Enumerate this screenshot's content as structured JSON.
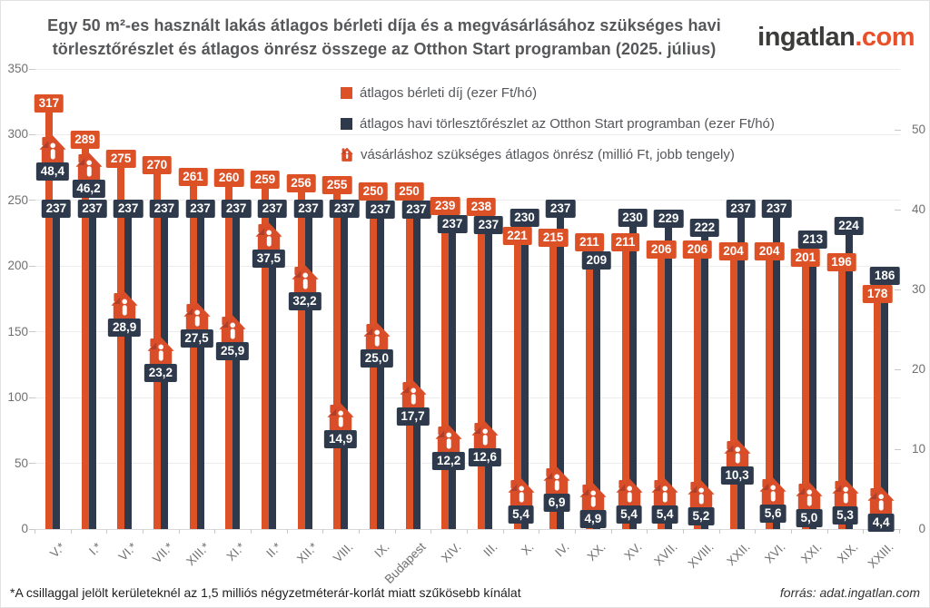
{
  "header": {
    "title_line1": "Egy 50 m²-es használt lakás átlagos bérleti díja és a megvásárlásához szükséges havi",
    "title_line2": "törlesztőrészlet és átlagos önrész összege az Otthon Start programban (2025. július)"
  },
  "logo": {
    "brand": "ingatlan",
    "tld": ".com"
  },
  "colors": {
    "orange": "#dd5127",
    "navy": "#2e3a4b",
    "house": "#d94e28",
    "house_shade": "#af3e2b",
    "grid": "#ececec",
    "axis_text": "#707070"
  },
  "chart_data": {
    "type": "bar",
    "title": "Egy 50 m²-es használt lakás átlagos bérleti díja és a megvásárlásához szükséges havi törlesztőrészlet és átlagos önrész összege az Otthon Start programban (2025. július)",
    "categories": [
      "V.*",
      "I.*",
      "VI.*",
      "VII.*",
      "XIII.*",
      "XI.*",
      "II.*",
      "XII.*",
      "VIII.",
      "IX.",
      "Budapest",
      "XIV.",
      "III.",
      "X.",
      "IV.",
      "XX.",
      "XV.",
      "XVII.",
      "XVIII.",
      "XXII.",
      "XVI.",
      "XXI.",
      "XIX.",
      "XXIII."
    ],
    "series": [
      {
        "name": "átlagos bérleti díj (ezer Ft/hó)",
        "axis": "left",
        "values": [
          317,
          289,
          275,
          270,
          261,
          260,
          259,
          256,
          255,
          250,
          250,
          239,
          238,
          221,
          215,
          211,
          211,
          206,
          206,
          204,
          204,
          201,
          196,
          178
        ]
      },
      {
        "name": "átlagos havi törlesztőrészlet az Otthon Start programban (ezer Ft/hó)",
        "axis": "left",
        "values": [
          237,
          237,
          237,
          237,
          237,
          237,
          237,
          237,
          237,
          237,
          237,
          237,
          237,
          230,
          237,
          209,
          230,
          229,
          222,
          237,
          237,
          213,
          224,
          186
        ]
      },
      {
        "name": "vásárláshoz szükséges átlagos önrész (millió Ft, jobb tengely)",
        "axis": "right",
        "marker": "house-icon",
        "values": [
          48.4,
          46.2,
          28.9,
          23.2,
          27.5,
          25.9,
          37.5,
          32.2,
          14.9,
          25.0,
          17.7,
          12.2,
          12.6,
          5.4,
          6.9,
          4.9,
          5.4,
          5.4,
          5.2,
          10.3,
          5.6,
          5.0,
          5.3,
          4.4
        ]
      }
    ],
    "left_axis": {
      "min": 0,
      "max": 350,
      "ticks": [
        0,
        50,
        100,
        150,
        200,
        250,
        300,
        350
      ]
    },
    "right_axis": {
      "min": 0,
      "max": 50,
      "ticks": [
        0,
        10,
        20,
        30,
        40,
        50
      ]
    },
    "grid": true,
    "legend_position": "top-center"
  },
  "footer": {
    "note": "*A csillaggal jelölt kerületeknél az 1,5 milliós négyzetméterár-korlát miatt szűkösebb kínálat",
    "source": "forrás: adat.ingatlan.com"
  }
}
